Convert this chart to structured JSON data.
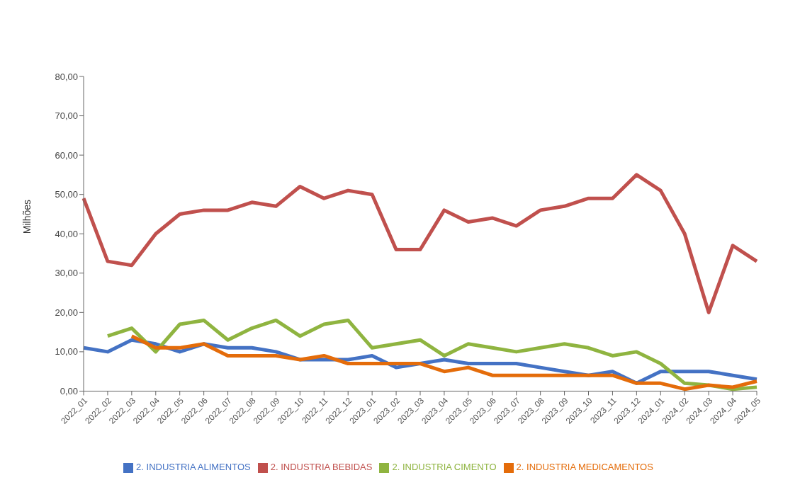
{
  "chart_data": {
    "type": "line",
    "ylabel": "Milhões",
    "categories": [
      "2022_01",
      "2022_02",
      "2022_03",
      "2022_04",
      "2022_05",
      "2022_06",
      "2022_07",
      "2022_08",
      "2022_09",
      "2022_10",
      "2022_11",
      "2022_12",
      "2023_01",
      "2023_02",
      "2023_03",
      "2023_04",
      "2023_05",
      "2023_06",
      "2023_07",
      "2023_08",
      "2023_09",
      "2023_10",
      "2023_11",
      "2023_12",
      "2024_01",
      "2024_02",
      "2024_03",
      "2024_04",
      "2024_05"
    ],
    "series": [
      {
        "name": "2. INDUSTRIA ALIMENTOS",
        "color": "#4472c4",
        "values": [
          11,
          10,
          13,
          12,
          10,
          12,
          11,
          11,
          10,
          8,
          8,
          8,
          9,
          6,
          7,
          8,
          7,
          7,
          7,
          6,
          5,
          4,
          5,
          2,
          5,
          5,
          5,
          4,
          3
        ]
      },
      {
        "name": "2. INDUSTRIA BEBIDAS",
        "color": "#c0504d",
        "values": [
          49,
          33,
          32,
          40,
          45,
          46,
          46,
          48,
          47,
          52,
          49,
          51,
          50,
          36,
          36,
          46,
          43,
          44,
          42,
          46,
          47,
          49,
          49,
          55,
          51,
          40,
          20,
          37,
          33
        ]
      },
      {
        "name": "2. INDUSTRIA CIMENTO",
        "color": "#8fb440",
        "values": [
          null,
          14,
          16,
          10,
          17,
          18,
          13,
          16,
          18,
          14,
          17,
          18,
          11,
          12,
          13,
          9,
          12,
          11,
          10,
          11,
          12,
          11,
          9,
          10,
          7,
          2,
          1.5,
          0.5,
          1
        ]
      },
      {
        "name": "2. INDUSTRIA MEDICAMENTOS",
        "color": "#e46c0a",
        "values": [
          null,
          null,
          14,
          11,
          11,
          12,
          9,
          9,
          9,
          8,
          9,
          7,
          7,
          7,
          7,
          5,
          6,
          4,
          4,
          4,
          4,
          4,
          4,
          2,
          2,
          0.5,
          1.5,
          1,
          2.5
        ]
      }
    ],
    "ylim": [
      0,
      80
    ],
    "yticks": [
      {
        "value": 0,
        "label": "0,00"
      },
      {
        "value": 10,
        "label": "10,00"
      },
      {
        "value": 20,
        "label": "20,00"
      },
      {
        "value": 30,
        "label": "30,00"
      },
      {
        "value": 40,
        "label": "40,00"
      },
      {
        "value": 50,
        "label": "50,00"
      },
      {
        "value": 60,
        "label": "60,00"
      },
      {
        "value": 70,
        "label": "70,00"
      },
      {
        "value": 80,
        "label": "80,00"
      }
    ],
    "grid": false,
    "legend": "bottom",
    "marker": "none",
    "line_style": "solid"
  }
}
